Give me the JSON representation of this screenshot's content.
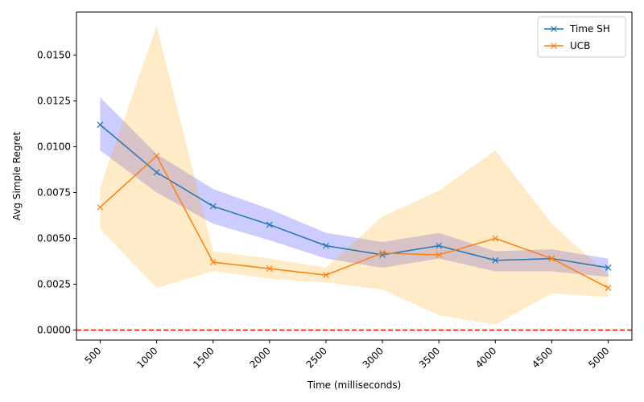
{
  "chart_data": {
    "type": "line",
    "xlabel": "Time (milliseconds)",
    "ylabel": "Avg Simple Regret",
    "x": [
      500,
      1000,
      1500,
      2000,
      2500,
      3000,
      3500,
      4000,
      4500,
      5000
    ],
    "xlim": [
      290,
      5210
    ],
    "ylim": [
      -0.00055,
      0.01735
    ],
    "yticks": [
      0.0,
      0.0025,
      0.005,
      0.0075,
      0.01,
      0.0125,
      0.015
    ],
    "ytick_labels": [
      "0.0000",
      "0.0025",
      "0.0050",
      "0.0075",
      "0.0100",
      "0.0125",
      "0.0150"
    ],
    "xtick_labels": [
      "500",
      "1000",
      "1500",
      "2000",
      "2500",
      "3000",
      "3500",
      "4000",
      "4500",
      "5000"
    ],
    "series": [
      {
        "name": "Time SH",
        "color": "#1f77b4",
        "marker": "x",
        "values": [
          0.0112,
          0.0086,
          0.00675,
          0.00575,
          0.0046,
          0.0041,
          0.0046,
          0.0038,
          0.0039,
          0.0034
        ],
        "band_lower": [
          0.0098,
          0.0075,
          0.0058,
          0.0049,
          0.0039,
          0.0034,
          0.0039,
          0.0032,
          0.0032,
          0.0029
        ],
        "band_upper": [
          0.0127,
          0.0096,
          0.0077,
          0.0066,
          0.0053,
          0.0048,
          0.0053,
          0.0043,
          0.0044,
          0.0039
        ],
        "band_color": "#0000ff",
        "band_opacity": 0.2
      },
      {
        "name": "UCB",
        "color": "#ff7f0e",
        "marker": "x",
        "values": [
          0.0067,
          0.0095,
          0.0037,
          0.00335,
          0.003,
          0.0042,
          0.0041,
          0.005,
          0.0039,
          0.0023
        ],
        "band_lower": [
          0.0055,
          0.0023,
          0.0032,
          0.0028,
          0.0026,
          0.0022,
          0.0008,
          0.0003,
          0.002,
          0.0018
        ],
        "band_upper": [
          0.0078,
          0.0166,
          0.0043,
          0.0039,
          0.0034,
          0.0062,
          0.0076,
          0.0098,
          0.0058,
          0.003
        ],
        "band_color": "#ffa500",
        "band_opacity": 0.22
      }
    ],
    "reference_line": {
      "y": 0.0,
      "color": "#ff0000",
      "style": "dashed"
    },
    "legend": {
      "placement": "top-right"
    },
    "grid": false
  }
}
